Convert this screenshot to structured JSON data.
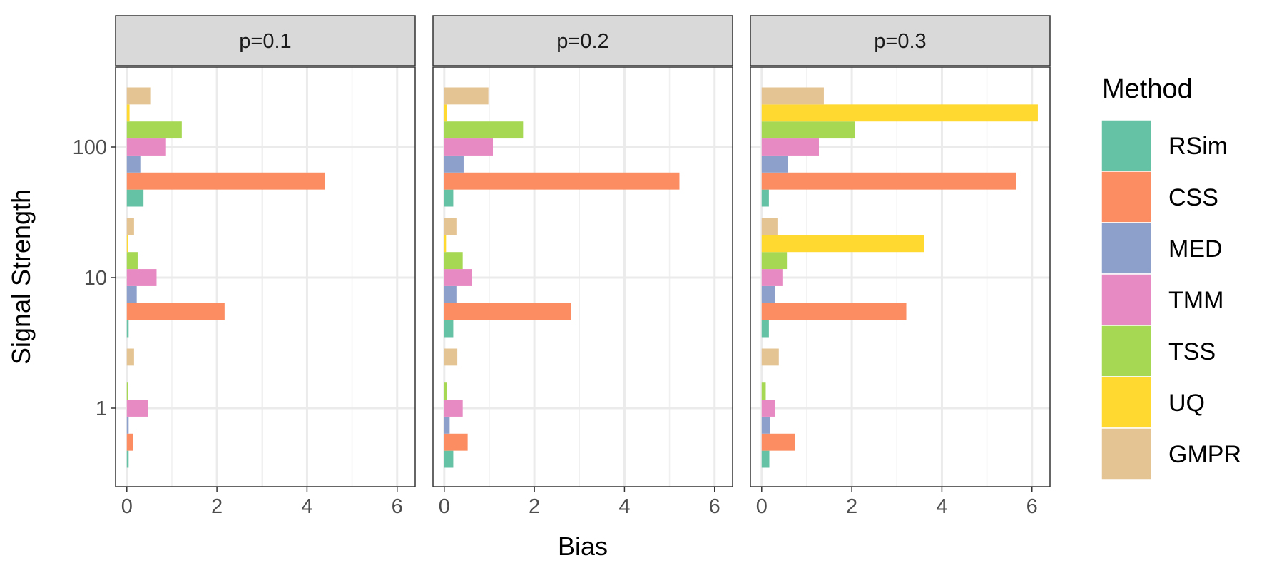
{
  "chart_data": {
    "type": "bar",
    "orientation": "horizontal",
    "xlabel": "Bias",
    "ylabel": "Signal Strength",
    "xlim": [
      -0.25,
      6.4
    ],
    "x_ticks": [
      0,
      2,
      4,
      6
    ],
    "categories": [
      "1",
      "10",
      "100"
    ],
    "grid": true,
    "legend": {
      "title": "Method",
      "position": "right",
      "entries": [
        {
          "name": "RSim",
          "color": "#66C2A5"
        },
        {
          "name": "CSS",
          "color": "#FC8D62"
        },
        {
          "name": "MED",
          "color": "#8DA0CB"
        },
        {
          "name": "TMM",
          "color": "#E78AC3"
        },
        {
          "name": "TSS",
          "color": "#A6D854"
        },
        {
          "name": "UQ",
          "color": "#FFD92F"
        },
        {
          "name": "GMPR",
          "color": "#E5C494"
        }
      ]
    },
    "panels": [
      {
        "label": "p=0.1",
        "series": [
          {
            "name": "RSim",
            "values": [
              0.04,
              0.04,
              0.37
            ]
          },
          {
            "name": "CSS",
            "values": [
              0.13,
              2.17,
              4.4
            ]
          },
          {
            "name": "MED",
            "values": [
              0.04,
              0.22,
              0.3
            ]
          },
          {
            "name": "TMM",
            "values": [
              0.47,
              0.66,
              0.87
            ]
          },
          {
            "name": "TSS",
            "values": [
              0.03,
              0.24,
              1.22
            ]
          },
          {
            "name": "UQ",
            "values": [
              0.0,
              0.02,
              0.06
            ]
          },
          {
            "name": "GMPR",
            "values": [
              0.16,
              0.16,
              0.52
            ]
          }
        ]
      },
      {
        "label": "p=0.2",
        "series": [
          {
            "name": "RSim",
            "values": [
              0.2,
              0.2,
              0.2
            ]
          },
          {
            "name": "CSS",
            "values": [
              0.52,
              2.82,
              5.22
            ]
          },
          {
            "name": "MED",
            "values": [
              0.12,
              0.27,
              0.43
            ]
          },
          {
            "name": "TMM",
            "values": [
              0.41,
              0.61,
              1.08
            ]
          },
          {
            "name": "TSS",
            "values": [
              0.06,
              0.41,
              1.75
            ]
          },
          {
            "name": "UQ",
            "values": [
              0.0,
              0.04,
              0.06
            ]
          },
          {
            "name": "GMPR",
            "values": [
              0.29,
              0.27,
              0.98
            ]
          }
        ]
      },
      {
        "label": "p=0.3",
        "series": [
          {
            "name": "RSim",
            "values": [
              0.17,
              0.16,
              0.16
            ]
          },
          {
            "name": "CSS",
            "values": [
              0.74,
              3.21,
              5.65
            ]
          },
          {
            "name": "MED",
            "values": [
              0.19,
              0.3,
              0.58
            ]
          },
          {
            "name": "TMM",
            "values": [
              0.3,
              0.46,
              1.27
            ]
          },
          {
            "name": "TSS",
            "values": [
              0.09,
              0.56,
              2.07
            ]
          },
          {
            "name": "UQ",
            "values": [
              0.0,
              3.6,
              6.13
            ]
          },
          {
            "name": "GMPR",
            "values": [
              0.38,
              0.35,
              1.38
            ]
          }
        ]
      }
    ]
  }
}
